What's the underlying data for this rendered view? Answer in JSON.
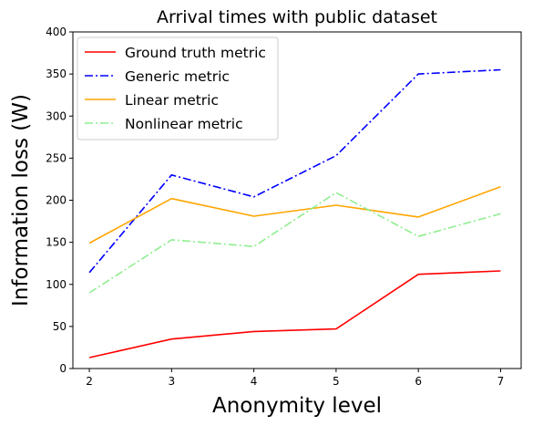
{
  "chart_data": {
    "type": "line",
    "title": "Arrival times with public dataset",
    "xlabel": "Anonymity level",
    "ylabel": "Information loss (W)",
    "x": [
      2,
      3,
      4,
      5,
      6,
      7
    ],
    "xlim": [
      1.8,
      7.25
    ],
    "ylim": [
      0,
      400
    ],
    "xticks": [
      2,
      3,
      4,
      5,
      6,
      7
    ],
    "yticks": [
      0,
      50,
      100,
      150,
      200,
      250,
      300,
      350,
      400
    ],
    "grid": false,
    "legend_position": "top-left",
    "series": [
      {
        "name": "Ground truth metric",
        "color": "#ff0000",
        "dash": "solid",
        "values": [
          13,
          35,
          44,
          47,
          112,
          116
        ]
      },
      {
        "name": "Generic metric",
        "color": "#0000ff",
        "dash": "dashdot",
        "values": [
          114,
          230,
          204,
          253,
          350,
          355
        ]
      },
      {
        "name": "Linear metric",
        "color": "#ffa500",
        "dash": "solid",
        "values": [
          149,
          202,
          181,
          194,
          180,
          216
        ]
      },
      {
        "name": "Nonlinear metric",
        "color": "#90ee90",
        "dash": "dashdot",
        "values": [
          90,
          153,
          145,
          209,
          157,
          184
        ]
      }
    ]
  }
}
